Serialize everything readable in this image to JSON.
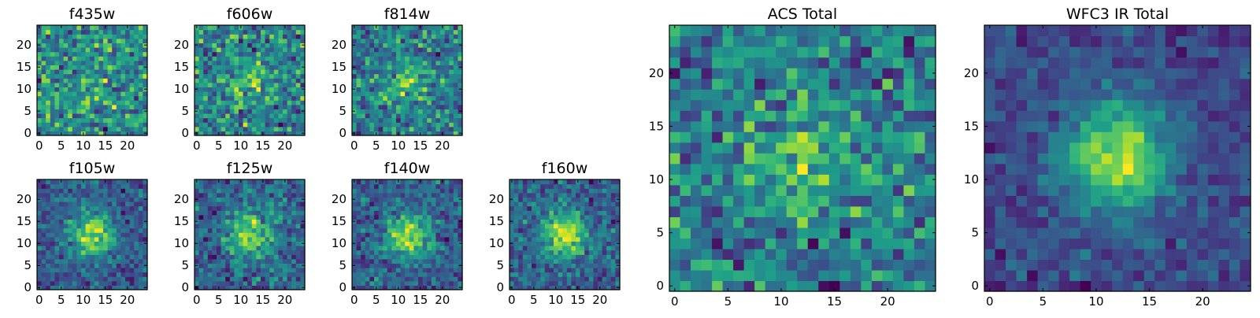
{
  "colormap": "viridis",
  "colors": {
    "viridis_stops": [
      "#440154",
      "#482878",
      "#3e4989",
      "#31688e",
      "#26828e",
      "#1f9e89",
      "#35b779",
      "#6ece58",
      "#b5de2b",
      "#fde725"
    ],
    "frame": "#000000",
    "background": "#ffffff"
  },
  "chart_data": [
    {
      "type": "heatmap",
      "title": "f435w",
      "grid_size": 25,
      "xticks": [
        "0",
        "5",
        "10",
        "15",
        "20"
      ],
      "yticks": [
        "0",
        "5",
        "10",
        "15",
        "20"
      ],
      "xlim": [
        -0.5,
        24.5
      ],
      "ylim": [
        -0.5,
        24.5
      ],
      "grid": false,
      "source_peak": 0.1,
      "background_level": 0.66,
      "noise": 0.45,
      "seed": 11
    },
    {
      "type": "heatmap",
      "title": "f606w",
      "grid_size": 25,
      "xticks": [
        "0",
        "5",
        "10",
        "15",
        "20"
      ],
      "yticks": [
        "0",
        "5",
        "10",
        "15",
        "20"
      ],
      "xlim": [
        -0.5,
        24.5
      ],
      "ylim": [
        -0.5,
        24.5
      ],
      "grid": false,
      "source_peak": 0.25,
      "background_level": 0.6,
      "noise": 0.4,
      "seed": 23
    },
    {
      "type": "heatmap",
      "title": "f814w",
      "grid_size": 25,
      "xticks": [
        "0",
        "5",
        "10",
        "15",
        "20"
      ],
      "yticks": [
        "0",
        "5",
        "10",
        "15",
        "20"
      ],
      "xlim": [
        -0.5,
        24.5
      ],
      "ylim": [
        -0.5,
        24.5
      ],
      "grid": false,
      "source_peak": 0.35,
      "background_level": 0.58,
      "noise": 0.42,
      "seed": 37
    },
    {
      "type": "heatmap",
      "title": "f105w",
      "grid_size": 25,
      "xticks": [
        "0",
        "5",
        "10",
        "15",
        "20"
      ],
      "yticks": [
        "0",
        "5",
        "10",
        "15",
        "20"
      ],
      "xlim": [
        -0.5,
        24.5
      ],
      "ylim": [
        -0.5,
        24.5
      ],
      "grid": false,
      "source_peak": 0.6,
      "background_level": 0.42,
      "noise": 0.22,
      "seed": 41
    },
    {
      "type": "heatmap",
      "title": "f125w",
      "grid_size": 25,
      "xticks": [
        "0",
        "5",
        "10",
        "15",
        "20"
      ],
      "yticks": [
        "0",
        "5",
        "10",
        "15",
        "20"
      ],
      "xlim": [
        -0.5,
        24.5
      ],
      "ylim": [
        -0.5,
        24.5
      ],
      "grid": false,
      "source_peak": 0.5,
      "background_level": 0.48,
      "noise": 0.25,
      "seed": 53
    },
    {
      "type": "heatmap",
      "title": "f140w",
      "grid_size": 25,
      "xticks": [
        "0",
        "5",
        "10",
        "15",
        "20"
      ],
      "yticks": [
        "0",
        "5",
        "10",
        "15",
        "20"
      ],
      "xlim": [
        -0.5,
        24.5
      ],
      "ylim": [
        -0.5,
        24.5
      ],
      "grid": false,
      "source_peak": 0.55,
      "background_level": 0.45,
      "noise": 0.22,
      "seed": 67
    },
    {
      "type": "heatmap",
      "title": "f160w",
      "grid_size": 25,
      "xticks": [
        "0",
        "5",
        "10",
        "15",
        "20"
      ],
      "yticks": [
        "0",
        "5",
        "10",
        "15",
        "20"
      ],
      "xlim": [
        -0.5,
        24.5
      ],
      "ylim": [
        -0.5,
        24.5
      ],
      "grid": false,
      "source_peak": 0.55,
      "background_level": 0.4,
      "noise": 0.22,
      "seed": 79
    },
    {
      "type": "heatmap",
      "title": "ACS Total",
      "grid_size": 25,
      "xticks": [
        "0",
        "5",
        "10",
        "15",
        "20"
      ],
      "yticks": [
        "0",
        "5",
        "10",
        "15",
        "20"
      ],
      "xlim": [
        -0.5,
        24.5
      ],
      "ylim": [
        -0.5,
        24.5
      ],
      "grid": false,
      "source_peak": 0.25,
      "background_level": 0.68,
      "noise": 0.32,
      "seed": 83
    },
    {
      "type": "heatmap",
      "title": "WFC3 IR Total",
      "grid_size": 25,
      "xticks": [
        "0",
        "5",
        "10",
        "15",
        "20"
      ],
      "yticks": [
        "0",
        "5",
        "10",
        "15",
        "20"
      ],
      "xlim": [
        -0.5,
        24.5
      ],
      "ylim": [
        -0.5,
        24.5
      ],
      "grid": false,
      "source_peak": 0.62,
      "background_level": 0.38,
      "noise": 0.14,
      "seed": 97
    }
  ]
}
